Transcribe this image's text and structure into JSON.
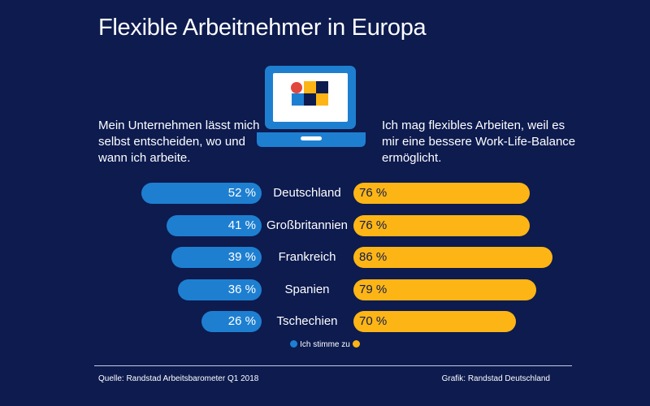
{
  "title": "Flexible Arbeitnehmer in Europa",
  "left_description": "Mein Unternehmen lässt mich selbst entscheiden, wo und wann ich arbeite.",
  "right_description": "Ich mag flexibles Arbeiten, weil es mir eine bessere Work-Life-Balance ermöglicht.",
  "legend_label": "Ich stimme zu",
  "source": "Quelle: Randstad Arbeitsbarometer Q1 2018",
  "credit": "Grafik: Randstad Deutschland",
  "colors": {
    "background": "#0d1b4f",
    "left_series": "#1e7fd1",
    "right_series": "#fdb515"
  },
  "chart_data": {
    "type": "bar",
    "categories": [
      "Deutschland",
      "Großbritannien",
      "Frankreich",
      "Spanien",
      "Tschechien"
    ],
    "series": [
      {
        "values": [
          52,
          41,
          39,
          36,
          26
        ]
      },
      {
        "values": [
          76,
          76,
          86,
          79,
          70
        ]
      }
    ],
    "value_labels_left": [
      "52 %",
      "41 %",
      "39 %",
      "36 %",
      "26 %"
    ],
    "value_labels_right": [
      "76 %",
      "76 %",
      "86 %",
      "79 %",
      "70 %"
    ],
    "unit": "%",
    "legend": "bottom-center",
    "grid": false
  }
}
